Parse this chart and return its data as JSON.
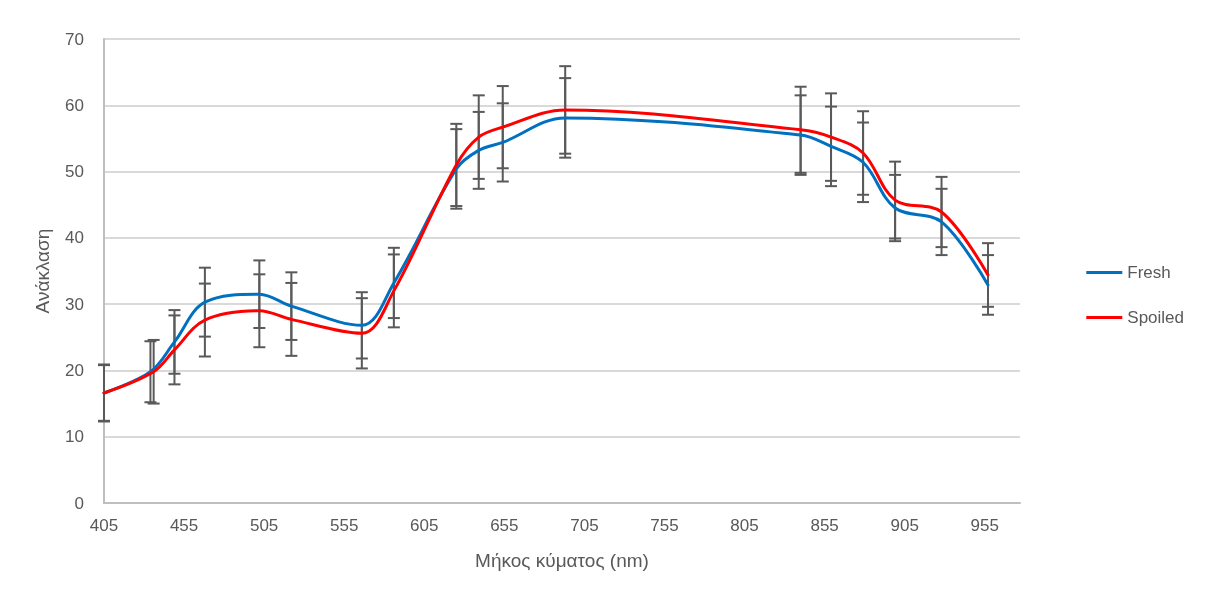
{
  "chart_data": {
    "type": "line",
    "xlabel": "Μήκος κύματος (nm)",
    "ylabel": "Ανάκλαση",
    "x": [
      405,
      434,
      449,
      468,
      502,
      522,
      566,
      586,
      625,
      639,
      654,
      693,
      840,
      859,
      879,
      899,
      928,
      957
    ],
    "series": [
      {
        "name": "Fresh",
        "color": "#0070c0",
        "values": [
          16.6,
          19.8,
          24.3,
          30.3,
          31.5,
          29.7,
          26.8,
          33.2,
          50.4,
          53.2,
          54.4,
          58.1,
          55.5,
          53.8,
          51.4,
          44.5,
          42.4,
          32.9
        ],
        "errors": [
          4.3,
          4.6,
          4.8,
          5.2,
          5.1,
          5.1,
          5.0,
          5.3,
          6.0,
          5.8,
          5.9,
          6.0,
          6.0,
          6.0,
          6.0,
          5.0,
          5.0,
          4.5
        ]
      },
      {
        "name": "Spoiled",
        "color": "#ff0000",
        "x": [
          405,
          436,
          449,
          468,
          502,
          522,
          566,
          586,
          625,
          639,
          654,
          693,
          840,
          859,
          879,
          899,
          928,
          957
        ],
        "values": [
          16.6,
          19.8,
          23.1,
          27.6,
          29.0,
          27.7,
          25.6,
          32.0,
          51.0,
          55.2,
          56.7,
          59.3,
          56.3,
          55.2,
          52.8,
          45.7,
          43.9,
          34.4
        ],
        "errors": [
          4.2,
          4.8,
          5.2,
          5.5,
          5.5,
          5.5,
          5.3,
          5.5,
          6.2,
          6.3,
          6.2,
          6.6,
          6.5,
          6.6,
          6.3,
          5.8,
          5.3,
          4.8
        ]
      }
    ],
    "xlim": [
      405,
      977
    ],
    "xticks": [
      405,
      455,
      505,
      555,
      605,
      655,
      705,
      755,
      805,
      855,
      905,
      955
    ],
    "ylim": [
      0,
      70
    ],
    "yticks": [
      0,
      10,
      20,
      30,
      40,
      50,
      60,
      70
    ],
    "grid": "y",
    "legend": "right",
    "marker": "none",
    "line_style": "solid"
  }
}
